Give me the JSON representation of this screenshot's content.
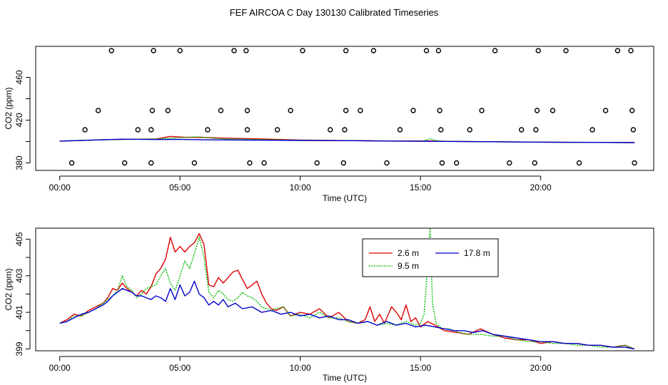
{
  "title": "FEF AIRCOA C  Day 130130  Calibrated Timeseries",
  "chart_data": [
    {
      "type": "scatter+line",
      "xlabel": "Time (UTC)",
      "ylabel": "CO2 (ppm)",
      "xlim": [
        -1.0,
        24.7
      ],
      "ylim": [
        373,
        489
      ],
      "xticks": [
        0,
        5,
        10,
        15,
        20
      ],
      "xtick_labels": [
        "00:00",
        "05:00",
        "10:00",
        "15:00",
        "20:00"
      ],
      "yticks": [
        380,
        420,
        460
      ],
      "ytick_labels": [
        "380",
        "420",
        "460"
      ],
      "yticks_minor": [
        400,
        440
      ],
      "calibration_points": [
        {
          "x": 0.5,
          "y": 380
        },
        {
          "x": 1.05,
          "y": 411
        },
        {
          "x": 1.6,
          "y": 429
        },
        {
          "x": 2.15,
          "y": 485
        },
        {
          "x": 2.7,
          "y": 380
        },
        {
          "x": 3.25,
          "y": 411
        },
        {
          "x": 3.8,
          "y": 380
        },
        {
          "x": 3.8,
          "y": 411
        },
        {
          "x": 3.85,
          "y": 429
        },
        {
          "x": 3.9,
          "y": 485
        },
        {
          "x": 4.5,
          "y": 429
        },
        {
          "x": 5.0,
          "y": 485
        },
        {
          "x": 5.6,
          "y": 380
        },
        {
          "x": 6.15,
          "y": 411
        },
        {
          "x": 6.7,
          "y": 429
        },
        {
          "x": 7.25,
          "y": 485
        },
        {
          "x": 7.75,
          "y": 485
        },
        {
          "x": 7.8,
          "y": 429
        },
        {
          "x": 7.8,
          "y": 411
        },
        {
          "x": 7.9,
          "y": 380
        },
        {
          "x": 8.5,
          "y": 380
        },
        {
          "x": 9.05,
          "y": 411
        },
        {
          "x": 9.6,
          "y": 429
        },
        {
          "x": 10.1,
          "y": 485
        },
        {
          "x": 10.7,
          "y": 380
        },
        {
          "x": 11.25,
          "y": 411
        },
        {
          "x": 11.8,
          "y": 380
        },
        {
          "x": 11.85,
          "y": 411
        },
        {
          "x": 11.9,
          "y": 429
        },
        {
          "x": 11.9,
          "y": 485
        },
        {
          "x": 12.5,
          "y": 429
        },
        {
          "x": 13.05,
          "y": 485
        },
        {
          "x": 13.6,
          "y": 380
        },
        {
          "x": 14.15,
          "y": 411
        },
        {
          "x": 14.7,
          "y": 429
        },
        {
          "x": 15.25,
          "y": 485
        },
        {
          "x": 15.75,
          "y": 485
        },
        {
          "x": 15.8,
          "y": 429
        },
        {
          "x": 15.85,
          "y": 411
        },
        {
          "x": 15.9,
          "y": 380
        },
        {
          "x": 16.5,
          "y": 380
        },
        {
          "x": 17.05,
          "y": 411
        },
        {
          "x": 17.55,
          "y": 429
        },
        {
          "x": 18.1,
          "y": 485
        },
        {
          "x": 18.7,
          "y": 380
        },
        {
          "x": 19.2,
          "y": 411
        },
        {
          "x": 19.75,
          "y": 380
        },
        {
          "x": 19.8,
          "y": 411
        },
        {
          "x": 19.85,
          "y": 429
        },
        {
          "x": 19.9,
          "y": 485
        },
        {
          "x": 20.5,
          "y": 429
        },
        {
          "x": 21.05,
          "y": 485
        },
        {
          "x": 21.6,
          "y": 380
        },
        {
          "x": 22.15,
          "y": 411
        },
        {
          "x": 22.7,
          "y": 429
        },
        {
          "x": 23.2,
          "y": 485
        },
        {
          "x": 23.75,
          "y": 485
        },
        {
          "x": 23.8,
          "y": 429
        },
        {
          "x": 23.85,
          "y": 411
        },
        {
          "x": 23.9,
          "y": 380
        }
      ],
      "series": [
        {
          "name": "2.6 m",
          "color": "#dd0000",
          "x": [
            0,
            2,
            4,
            4.6,
            5.2,
            6,
            7,
            8,
            10,
            12,
            14,
            15.3,
            16,
            18,
            20,
            22,
            23.9
          ],
          "y": [
            400.4,
            401.8,
            402.4,
            404.8,
            404.0,
            403.8,
            403.0,
            402.6,
            401.4,
            400.9,
            400.5,
            400.6,
            400.2,
            399.8,
            399.4,
            399.2,
            399.0
          ]
        },
        {
          "name": "9.5 m",
          "color": "#00bb00",
          "x": [
            0,
            2,
            4,
            5.0,
            5.8,
            6.5,
            7.5,
            8.5,
            10,
            12,
            14,
            15.1,
            15.4,
            15.7,
            16,
            18,
            20,
            22,
            23.9
          ],
          "y": [
            400.4,
            401.8,
            402.4,
            403.6,
            404.4,
            402.8,
            402.2,
            401.8,
            401.2,
            400.8,
            400.4,
            400.4,
            402.6,
            400.6,
            400.2,
            399.8,
            399.4,
            399.2,
            399.0
          ]
        },
        {
          "name": "17.8 m",
          "color": "#0000cc",
          "x": [
            0,
            2,
            2.6,
            4,
            5,
            6,
            8,
            10,
            12,
            14,
            16,
            18,
            20,
            22,
            23.9
          ],
          "y": [
            400.4,
            401.8,
            402.2,
            401.9,
            402.0,
            401.6,
            401.3,
            401.0,
            400.8,
            400.4,
            400.1,
            399.8,
            399.4,
            399.2,
            399.0
          ]
        }
      ]
    },
    {
      "type": "line",
      "xlabel": "Time (UTC)",
      "ylabel": "CO2 (ppm)",
      "xlim": [
        -1.0,
        24.7
      ],
      "ylim": [
        398.9,
        405.6
      ],
      "xticks": [
        0,
        5,
        10,
        15,
        20
      ],
      "xtick_labels": [
        "00:00",
        "05:00",
        "10:00",
        "15:00",
        "20:00"
      ],
      "yticks": [
        399,
        401,
        403,
        405
      ],
      "ytick_labels": [
        "399",
        "401",
        "403",
        "405"
      ],
      "yticks_minor": [
        400,
        402,
        404
      ],
      "legend": {
        "placement": "top-center",
        "ncol": 2
      },
      "series": [
        {
          "name": "2.6 m",
          "color": "#dd0000",
          "x": [
            0,
            0.3,
            0.6,
            0.9,
            1.2,
            1.5,
            1.8,
            2.0,
            2.2,
            2.4,
            2.6,
            2.8,
            3.0,
            3.2,
            3.4,
            3.6,
            3.8,
            4.0,
            4.2,
            4.4,
            4.6,
            4.8,
            5.0,
            5.2,
            5.4,
            5.6,
            5.8,
            6.0,
            6.2,
            6.4,
            6.6,
            6.8,
            7.0,
            7.2,
            7.4,
            7.6,
            7.8,
            8.0,
            8.2,
            8.4,
            8.6,
            8.8,
            9.0,
            9.3,
            9.6,
            10.0,
            10.4,
            10.8,
            11.2,
            11.6,
            12.0,
            12.4,
            12.7,
            12.9,
            13.1,
            13.3,
            13.5,
            13.8,
            14.0,
            14.2,
            14.4,
            14.6,
            14.8,
            15.0,
            15.3,
            15.6,
            16.0,
            16.5,
            17.0,
            17.5,
            18.0,
            18.5,
            19.0,
            19.5,
            20.0,
            20.5,
            21.0,
            21.5,
            22.0,
            22.5,
            23.0,
            23.5,
            23.9
          ],
          "y": [
            400.4,
            400.6,
            400.9,
            400.8,
            401.1,
            401.3,
            401.5,
            401.8,
            402.3,
            402.2,
            402.6,
            402.3,
            402.1,
            401.9,
            402.2,
            402.0,
            402.4,
            403.1,
            403.4,
            403.9,
            405.1,
            404.3,
            404.6,
            404.3,
            404.6,
            404.8,
            405.3,
            404.7,
            402.5,
            402.4,
            402.9,
            402.6,
            402.9,
            403.2,
            403.3,
            402.8,
            402.3,
            402.5,
            402.7,
            402.0,
            401.5,
            401.2,
            401.1,
            401.3,
            400.8,
            401.0,
            400.9,
            401.2,
            400.7,
            401.0,
            400.5,
            400.4,
            400.6,
            401.3,
            400.5,
            400.9,
            400.4,
            401.3,
            401.0,
            400.6,
            401.4,
            400.5,
            400.7,
            400.2,
            400.5,
            400.3,
            400.0,
            399.9,
            399.8,
            400.1,
            399.8,
            399.6,
            399.5,
            399.5,
            399.3,
            399.4,
            399.3,
            399.3,
            399.2,
            399.2,
            399.1,
            399.2,
            399.0
          ]
        },
        {
          "name": "9.5 m",
          "color": "#00bb00",
          "x": [
            0,
            0.3,
            0.6,
            0.9,
            1.2,
            1.5,
            1.8,
            2.0,
            2.2,
            2.4,
            2.6,
            2.8,
            3.0,
            3.2,
            3.4,
            3.6,
            3.8,
            4.0,
            4.2,
            4.4,
            4.6,
            4.8,
            5.0,
            5.2,
            5.4,
            5.6,
            5.8,
            6.0,
            6.2,
            6.4,
            6.6,
            6.8,
            7.0,
            7.2,
            7.4,
            7.6,
            7.8,
            8.0,
            8.2,
            8.4,
            8.6,
            8.8,
            9.0,
            9.3,
            9.6,
            10.0,
            10.4,
            10.8,
            11.2,
            11.6,
            12.0,
            12.4,
            12.8,
            13.2,
            13.6,
            14.0,
            14.4,
            14.8,
            15.0,
            15.15,
            15.3,
            15.4,
            15.5,
            15.65,
            15.9,
            16.2,
            16.6,
            17.0,
            17.5,
            18.0,
            18.5,
            19.0,
            19.5,
            20.0,
            20.5,
            21.0,
            21.5,
            22.0,
            22.5,
            23.0,
            23.5,
            23.9
          ],
          "y": [
            400.4,
            400.5,
            400.8,
            400.8,
            401.0,
            401.2,
            401.5,
            401.7,
            401.9,
            402.2,
            403.0,
            402.4,
            402.2,
            401.8,
            402.0,
            402.3,
            402.4,
            402.5,
            403.0,
            403.4,
            402.6,
            402.2,
            403.0,
            403.8,
            403.4,
            404.2,
            405.1,
            404.0,
            402.1,
            401.8,
            402.2,
            402.0,
            401.7,
            401.6,
            401.8,
            402.1,
            401.9,
            401.8,
            401.6,
            401.3,
            401.2,
            401.1,
            401.2,
            401.3,
            400.8,
            400.9,
            400.7,
            401.0,
            400.7,
            400.7,
            400.5,
            400.4,
            400.5,
            400.3,
            400.4,
            400.3,
            400.5,
            400.3,
            400.4,
            400.9,
            403.6,
            405.6,
            401.5,
            400.4,
            400.1,
            400.1,
            399.9,
            399.8,
            399.8,
            399.7,
            399.7,
            399.5,
            399.4,
            399.4,
            399.3,
            399.3,
            399.2,
            399.2,
            399.1,
            399.1,
            399.2,
            399.0
          ]
        },
        {
          "name": "17.8 m",
          "color": "#0000cc",
          "x": [
            0,
            0.3,
            0.6,
            0.9,
            1.2,
            1.5,
            1.8,
            2.0,
            2.2,
            2.4,
            2.6,
            2.8,
            3.0,
            3.2,
            3.4,
            3.6,
            3.8,
            4.0,
            4.2,
            4.4,
            4.6,
            4.8,
            5.0,
            5.2,
            5.4,
            5.6,
            5.8,
            6.0,
            6.2,
            6.4,
            6.6,
            6.8,
            7.0,
            7.3,
            7.6,
            8.0,
            8.4,
            8.8,
            9.2,
            9.6,
            10.0,
            10.4,
            10.8,
            11.2,
            11.6,
            12.0,
            12.4,
            12.8,
            13.2,
            13.6,
            14.0,
            14.4,
            14.8,
            15.2,
            15.6,
            16.0,
            16.4,
            16.8,
            17.2,
            17.6,
            18.0,
            18.5,
            19.0,
            19.5,
            20.0,
            20.5,
            21.0,
            21.5,
            22.0,
            22.5,
            23.0,
            23.5,
            23.9
          ],
          "y": [
            400.4,
            400.5,
            400.7,
            400.9,
            401.0,
            401.2,
            401.4,
            401.6,
            401.9,
            402.1,
            402.3,
            402.2,
            402.1,
            401.9,
            401.9,
            401.8,
            401.7,
            401.9,
            401.8,
            401.6,
            402.3,
            401.7,
            402.5,
            401.9,
            402.1,
            402.7,
            402.0,
            401.8,
            401.4,
            401.6,
            401.4,
            401.7,
            401.3,
            401.5,
            401.2,
            401.3,
            401.0,
            401.1,
            400.9,
            401.0,
            400.8,
            400.9,
            400.7,
            400.8,
            400.6,
            400.6,
            400.4,
            400.5,
            400.3,
            400.5,
            400.3,
            400.4,
            400.2,
            400.3,
            400.2,
            400.1,
            400.0,
            400.0,
            399.9,
            400.0,
            399.8,
            399.7,
            399.6,
            399.5,
            399.4,
            399.4,
            399.3,
            399.3,
            399.2,
            399.2,
            399.1,
            399.1,
            399.0
          ]
        }
      ]
    }
  ]
}
